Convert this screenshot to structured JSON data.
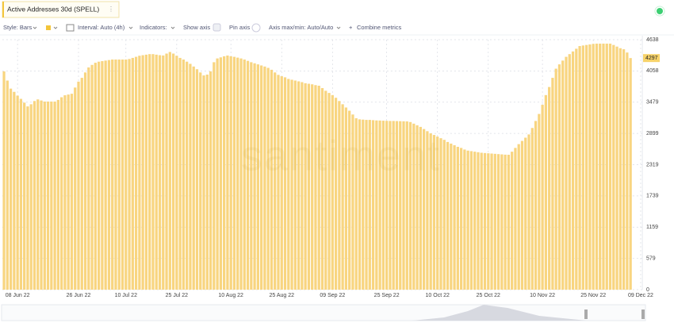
{
  "chart_data": {
    "type": "bar",
    "title": "Active Addresses 30d (SPELL)",
    "watermark": "santiment",
    "color": "#f8d580",
    "categories": [
      null,
      null,
      null,
      null,
      "08 Jun 22",
      null,
      null,
      null,
      null,
      null,
      null,
      null,
      null,
      null,
      null,
      null,
      null,
      null,
      null,
      null,
      null,
      null,
      "26 Jun 22",
      null,
      null,
      null,
      null,
      null,
      null,
      null,
      null,
      null,
      null,
      null,
      null,
      null,
      "10 Jul 22",
      null,
      null,
      null,
      null,
      null,
      null,
      null,
      null,
      null,
      null,
      null,
      null,
      null,
      null,
      "25 Jul 22",
      null,
      null,
      null,
      null,
      null,
      null,
      null,
      null,
      null,
      null,
      null,
      null,
      null,
      null,
      null,
      "10 Aug 22",
      null,
      null,
      null,
      null,
      null,
      null,
      null,
      null,
      null,
      null,
      null,
      null,
      null,
      null,
      "25 Aug 22",
      null,
      null,
      null,
      null,
      null,
      null,
      null,
      null,
      null,
      null,
      null,
      null,
      null,
      null,
      "09 Sep 22",
      null,
      null,
      null,
      null,
      null,
      null,
      null,
      null,
      null,
      null,
      null,
      null,
      null,
      null,
      null,
      "25 Sep 22",
      null,
      null,
      null,
      null,
      null,
      null,
      null,
      null,
      null,
      null,
      null,
      null,
      null,
      null,
      "10 Oct 22",
      null,
      null,
      null,
      null,
      null,
      null,
      null,
      null,
      null,
      null,
      null,
      null,
      null,
      null,
      "25 Oct 22",
      null,
      null,
      null,
      null,
      null,
      null,
      null,
      null,
      null,
      null,
      null,
      null,
      null,
      null,
      null,
      "10 Nov 22",
      null,
      null,
      null,
      null,
      null,
      null,
      null,
      null,
      null,
      null,
      null,
      null,
      null,
      null,
      "25 Nov 22",
      null,
      null,
      null,
      null,
      null,
      null,
      null,
      null,
      null,
      null,
      null,
      null,
      null,
      "09 Dec 22"
    ],
    "values": [
      4049,
      3880,
      3730,
      3670,
      3600,
      3540,
      3470,
      3400,
      3440,
      3500,
      3530,
      3510,
      3490,
      3490,
      3490,
      3490,
      3520,
      3570,
      3607,
      3620,
      3635,
      3750,
      3860,
      3930,
      4030,
      4123,
      4170,
      4210,
      4230,
      4240,
      4250,
      4260,
      4270,
      4270,
      4270,
      4270,
      4270,
      4280,
      4300,
      4320,
      4340,
      4350,
      4360,
      4370,
      4370,
      4360,
      4350,
      4345,
      4380,
      4410,
      4380,
      4340,
      4300,
      4270,
      4230,
      4190,
      4140,
      4090,
      4030,
      3975,
      3990,
      4050,
      4220,
      4290,
      4310,
      4330,
      4344,
      4330,
      4320,
      4305,
      4290,
      4270,
      4245,
      4220,
      4200,
      4180,
      4160,
      4140,
      4115,
      4080,
      4030,
      3985,
      3960,
      3940,
      3910,
      3895,
      3880,
      3865,
      3850,
      3830,
      3820,
      3810,
      3795,
      3784,
      3740,
      3690,
      3650,
      3610,
      3560,
      3500,
      3440,
      3380,
      3320,
      3250,
      3180,
      3160,
      3155,
      3150,
      3150,
      3145,
      3140,
      3138,
      3135,
      3133,
      3130,
      3130,
      3128,
      3126,
      3124,
      3122,
      3110,
      3080,
      3050,
      3020,
      2980,
      2940,
      2900,
      2870,
      2840,
      2810,
      2780,
      2740,
      2710,
      2680,
      2650,
      2630,
      2600,
      2580,
      2570,
      2560,
      2550,
      2540,
      2535,
      2530,
      2525,
      2520,
      2515,
      2510,
      2505,
      2503,
      2560,
      2630,
      2700,
      2760,
      2820,
      2880,
      3000,
      3130,
      3260,
      3430,
      3610,
      3760,
      3930,
      4100,
      4180,
      4250,
      4320,
      4370,
      4420,
      4470,
      4520,
      4530,
      4540,
      4550,
      4560,
      4565,
      4565,
      4565,
      4565,
      4565,
      4540,
      4510,
      4480,
      4460,
      4400,
      4297,
      null,
      null,
      null
    ],
    "ylim": [
      0,
      4638
    ],
    "yticks": [
      0,
      579,
      1159,
      1739,
      2319,
      2899,
      3479,
      4058,
      4638
    ],
    "grid": true
  },
  "ui": {
    "toolbar": {
      "style": "Style: Bars",
      "interval": "Interval: Auto (4h)",
      "indicators": "Indicators:",
      "show_axis": "Show axis",
      "pin_axis": "Pin axis",
      "axis_minmax": "Axis max/min: Auto/Auto",
      "combine": "Combine metrics"
    }
  }
}
